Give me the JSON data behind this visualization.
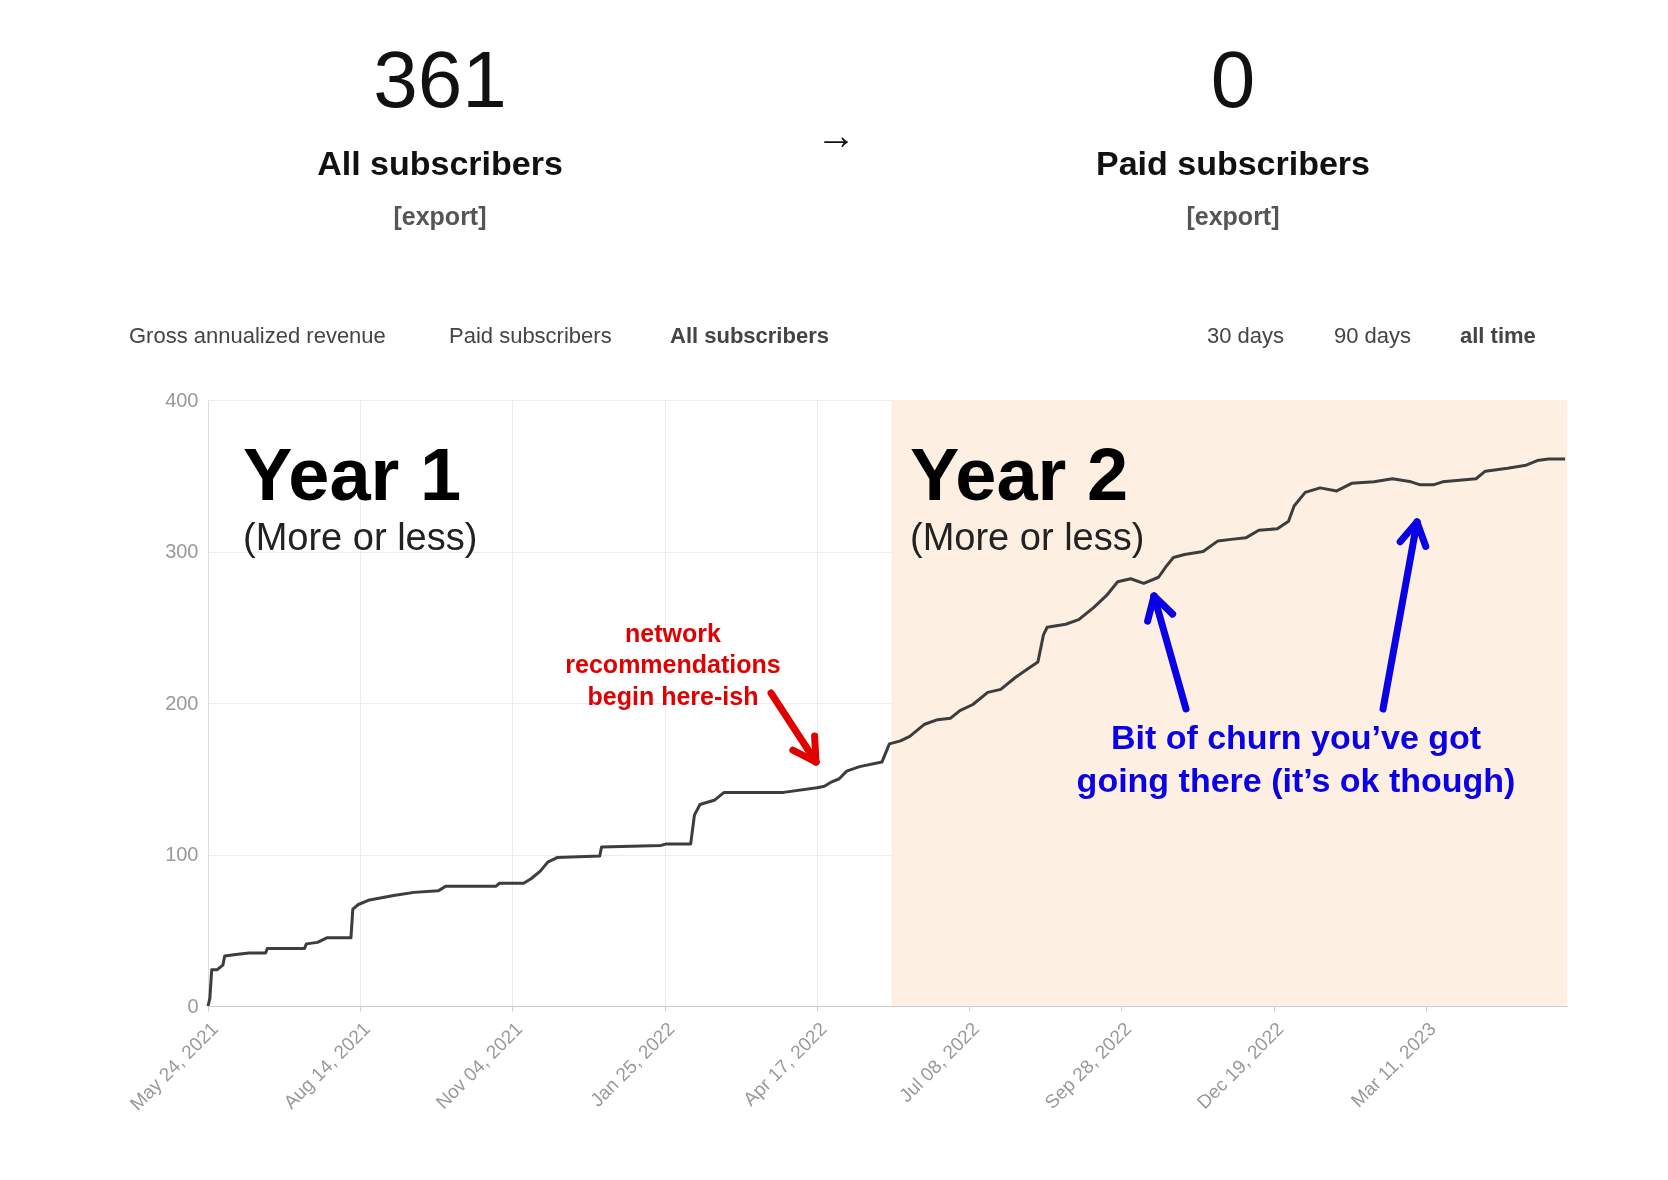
{
  "chart_data": {
    "type": "line",
    "annotations": [
      "361",
      "All subscribers",
      "[export]",
      "→",
      "0",
      "Paid subscribers",
      "[export]",
      "Gross annualized revenue",
      "Paid subscribers",
      "All subscribers",
      "30 days",
      "90 days",
      "all time",
      "Year 1",
      "(More or less)",
      "Year 2",
      "(More or less)",
      "network\nrecommendations\nbegin here-ish",
      "Bit of churn you’ve got\ngoing there (it’s ok though)"
    ],
    "x": [
      "2021-05-24",
      "2021-05-25",
      "2021-05-26",
      "2021-05-29",
      "2021-06-01",
      "2021-06-02",
      "2021-06-08",
      "2021-06-15",
      "2021-06-24",
      "2021-06-25",
      "2021-07-15",
      "2021-07-16",
      "2021-07-22",
      "2021-07-27",
      "2021-08-09",
      "2021-08-10",
      "2021-08-13",
      "2021-08-19",
      "2021-09-01",
      "2021-09-12",
      "2021-09-25",
      "2021-09-29",
      "2021-10-26",
      "2021-10-28",
      "2021-11-10",
      "2021-11-14",
      "2021-11-19",
      "2021-11-23",
      "2021-11-28",
      "2021-12-21",
      "2021-12-22",
      "2022-01-23",
      "2022-01-26",
      "2022-02-08",
      "2022-02-10",
      "2022-02-13",
      "2022-02-21",
      "2022-02-26",
      "2022-03-22",
      "2022-03-30",
      "2022-04-17",
      "2022-04-21",
      "2022-04-25",
      "2022-04-29",
      "2022-05-03",
      "2022-05-10",
      "2022-05-22",
      "2022-05-26",
      "2022-06-01",
      "2022-06-06",
      "2022-06-14",
      "2022-06-21",
      "2022-06-28",
      "2022-07-03",
      "2022-07-10",
      "2022-07-18",
      "2022-07-25",
      "2022-08-02",
      "2022-08-09",
      "2022-08-14",
      "2022-08-17",
      "2022-08-19",
      "2022-08-29",
      "2022-09-05",
      "2022-09-13",
      "2022-09-20",
      "2022-09-26",
      "2022-10-03",
      "2022-10-10",
      "2022-10-18",
      "2022-10-22",
      "2022-10-26",
      "2022-11-01",
      "2022-11-11",
      "2022-11-19",
      "2022-11-26",
      "2022-12-04",
      "2022-12-11",
      "2022-12-21",
      "2022-12-27",
      "2022-12-30",
      "2023-01-05",
      "2023-01-13",
      "2023-01-22",
      "2023-01-30",
      "2023-02-11",
      "2023-02-21",
      "2023-03-03",
      "2023-03-08",
      "2023-03-15",
      "2023-03-20",
      "2023-04-07",
      "2023-04-12",
      "2023-04-24",
      "2023-05-04",
      "2023-05-10",
      "2023-05-16",
      "2023-05-25"
    ],
    "series": [
      {
        "color": "#3d3d3d",
        "values": [
          0,
          5,
          24,
          24,
          27,
          33,
          34,
          35,
          35,
          38,
          38,
          41,
          42,
          45,
          45,
          64,
          67,
          70,
          73,
          75,
          76,
          79,
          79,
          81,
          81,
          84,
          89,
          95,
          98,
          99,
          105,
          106,
          107,
          107,
          126,
          133,
          136,
          141,
          141,
          141,
          144,
          145,
          148,
          150,
          155,
          158,
          161,
          173,
          175,
          178,
          186,
          189,
          190,
          195,
          199,
          207,
          209,
          217,
          223,
          227,
          245,
          250,
          252,
          255,
          263,
          271,
          280,
          282,
          279,
          283,
          290,
          296,
          298,
          300,
          307,
          308,
          309,
          314,
          315,
          320,
          330,
          339,
          342,
          340,
          345,
          346,
          348,
          346,
          344,
          344,
          346,
          348,
          353,
          355,
          357,
          360,
          361,
          361
        ]
      }
    ],
    "xlim": [
      "2021-05-24",
      "2023-05-26"
    ],
    "xticks": [
      {
        "value": "2021-05-24",
        "label": "May 24, 2021"
      },
      {
        "value": "2021-08-14",
        "label": "Aug 14, 2021"
      },
      {
        "value": "2021-11-04",
        "label": "Nov 04, 2021"
      },
      {
        "value": "2022-01-25",
        "label": "Jan 25, 2022"
      },
      {
        "value": "2022-04-17",
        "label": "Apr 17, 2022"
      },
      {
        "value": "2022-07-08",
        "label": "Jul 08, 2022"
      },
      {
        "value": "2022-09-28",
        "label": "Sep 28, 2022"
      },
      {
        "value": "2022-12-19",
        "label": "Dec 19, 2022"
      },
      {
        "value": "2023-03-11",
        "label": "Mar 11, 2023"
      }
    ],
    "ylim": [
      0,
      400
    ],
    "yticks": [
      0,
      100,
      200,
      300,
      400
    ],
    "bands": [
      {
        "axis": "x",
        "from": "2022-05-27",
        "to": "2023-05-26",
        "color": "#fdf0e2"
      }
    ],
    "grid": true,
    "line_style": "solid",
    "marker": "none"
  }
}
